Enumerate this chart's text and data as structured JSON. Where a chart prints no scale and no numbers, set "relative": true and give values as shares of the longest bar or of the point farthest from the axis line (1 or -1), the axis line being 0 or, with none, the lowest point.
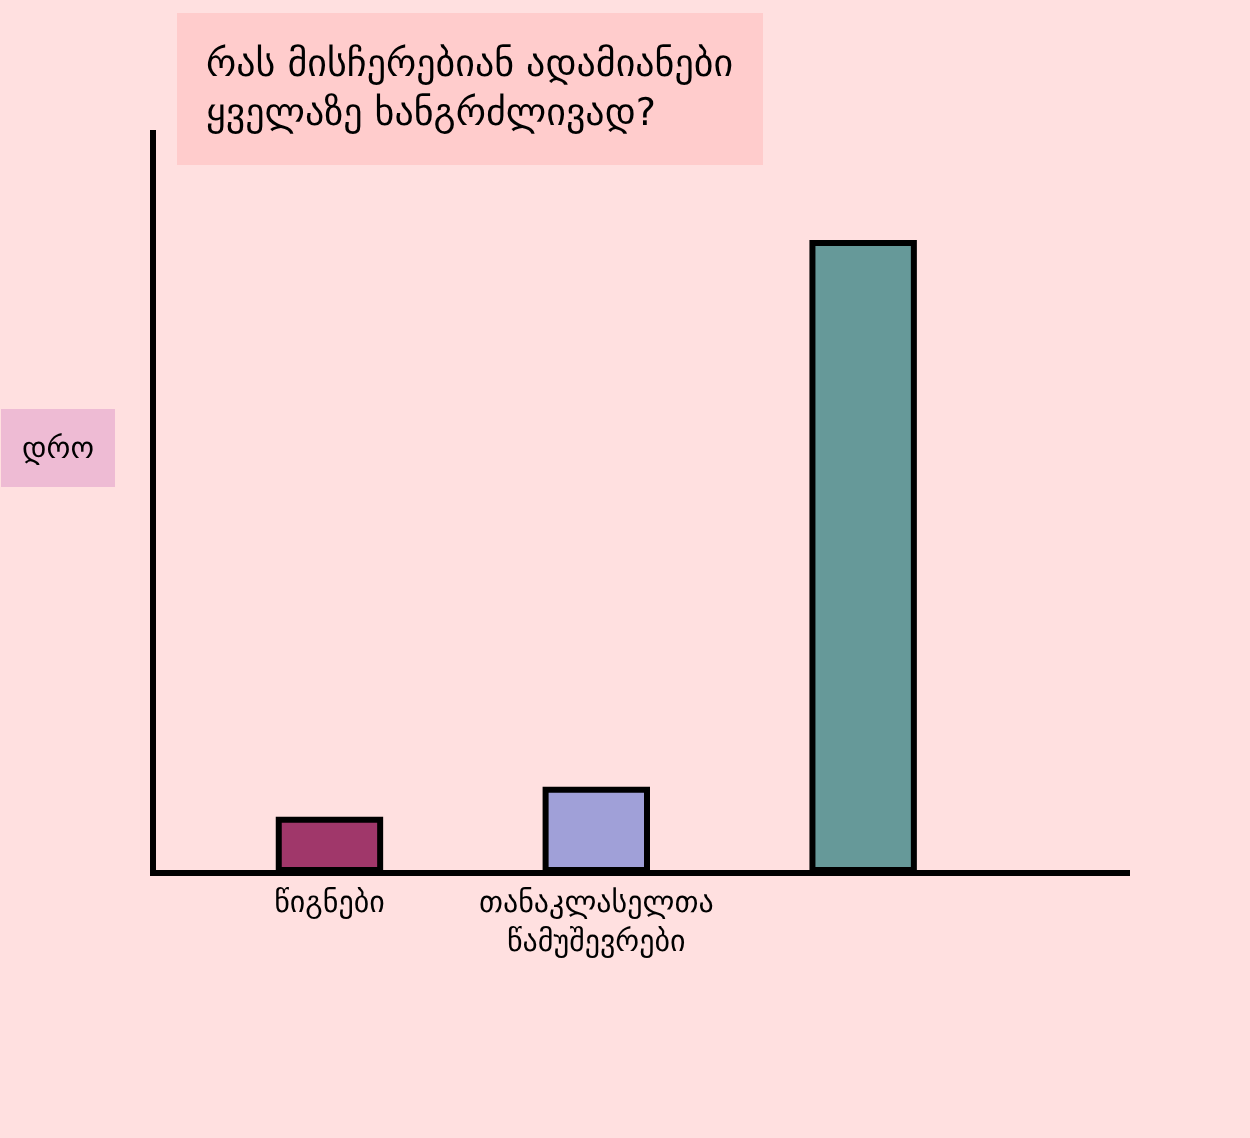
{
  "chart_data": {
    "type": "bar",
    "title": "რას მისჩერებიან ადამიანები\nყველაზე ხანგრძლივად?",
    "ylabel": "დრო",
    "categories": [
      "წიგნები",
      "თანაკლასელთა\nწამუშევრები",
      null
    ],
    "values": [
      0.08,
      0.128,
      1
    ],
    "colors": [
      "#a0376a",
      "#a0a0d8",
      "#669999"
    ],
    "relative": true,
    "grid": false,
    "legend": false
  }
}
